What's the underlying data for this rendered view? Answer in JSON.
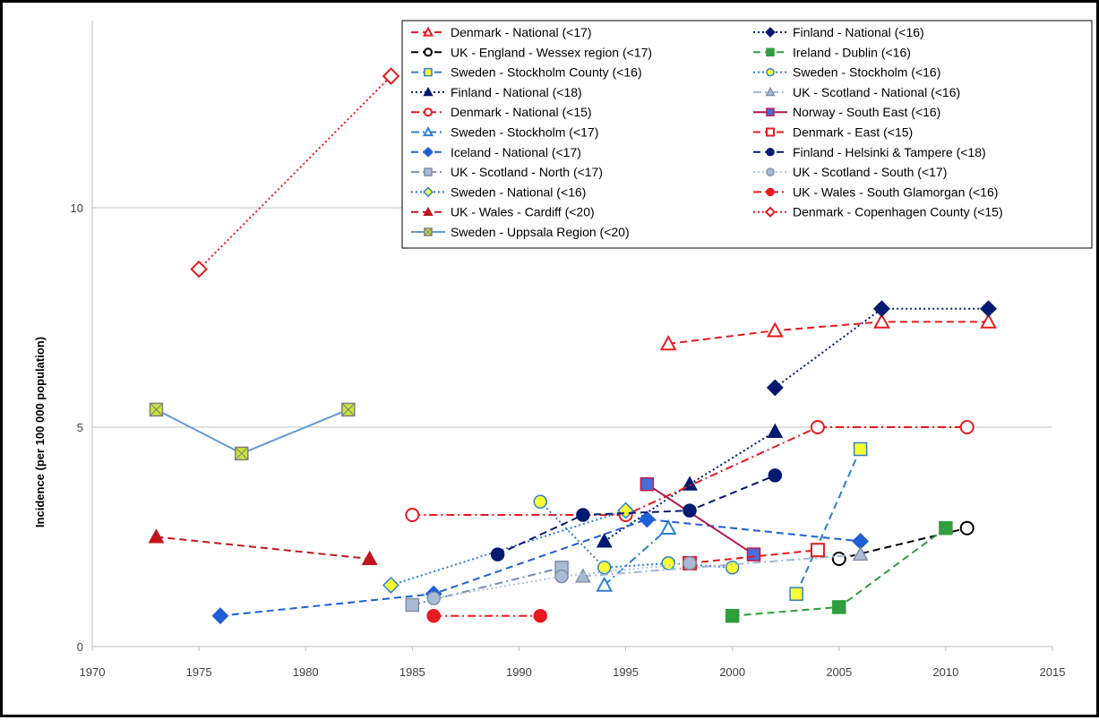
{
  "chart_data": {
    "type": "scatter",
    "title": "",
    "xlabel": "",
    "ylabel": "Incidence (per 100 000 population)",
    "xlim": [
      1970,
      2015
    ],
    "ylim": [
      0,
      14
    ],
    "x_ticks": [
      "1970",
      "1975",
      "1980",
      "1985",
      "1990",
      "1995",
      "2000",
      "2005",
      "2010",
      "2015"
    ],
    "y_ticks": [
      "0",
      "5",
      "10"
    ],
    "grid": "horizontal at 5 and 10",
    "legend_position": "top-right",
    "series": [
      {
        "name": "Denmark - National  (<17)",
        "color": "#e8191f",
        "dash": "dashed",
        "marker": "triangle-open",
        "points": [
          [
            1997,
            6.9
          ],
          [
            2002,
            7.2
          ],
          [
            2007,
            7.4
          ],
          [
            2012,
            7.4
          ]
        ]
      },
      {
        "name": "UK - England - Wessex region  (<17)",
        "color": "#000000",
        "dash": "dashed",
        "marker": "circle-open",
        "points": [
          [
            2005,
            2.0
          ],
          [
            2011,
            2.7
          ]
        ]
      },
      {
        "name": "Sweden - Stockholm County  (<16)",
        "color": "#2a7fd4",
        "dash": "dashed",
        "marker": "square-yellow",
        "points": [
          [
            2003,
            1.2
          ],
          [
            2006,
            4.5
          ]
        ]
      },
      {
        "name": "Finland - National  (<18)",
        "color": "#001a70",
        "dash": "dotted",
        "marker": "triangle-filled",
        "points": [
          [
            1994,
            2.4
          ],
          [
            1998,
            3.7
          ],
          [
            2002,
            4.9
          ]
        ]
      },
      {
        "name": "Denmark - National  (<15)",
        "color": "#e8191f",
        "dash": "dashdot",
        "marker": "circle-open",
        "points": [
          [
            1985,
            3.0
          ],
          [
            1995,
            3.0
          ],
          [
            2004,
            5.0
          ],
          [
            2011,
            5.0
          ]
        ]
      },
      {
        "name": "Sweden - Stockholm  (<17)",
        "color": "#2a7fd4",
        "dash": "dashdot",
        "marker": "triangle-open",
        "points": [
          [
            1994,
            1.4
          ],
          [
            1997,
            2.7
          ]
        ]
      },
      {
        "name": "Iceland - National  (<17)",
        "color": "#1f5fd6",
        "dash": "dashed",
        "marker": "diamond-filled",
        "points": [
          [
            1976,
            0.7
          ],
          [
            1986,
            1.2
          ],
          [
            1996,
            2.9
          ],
          [
            2006,
            2.4
          ]
        ]
      },
      {
        "name": "UK - Scotland - North  (<17)",
        "color": "#6f8fbf",
        "dash": "dashdot",
        "marker": "square-gray",
        "points": [
          [
            1985,
            0.95
          ],
          [
            1992,
            1.8
          ]
        ]
      },
      {
        "name": "Sweden - National  (<16)",
        "color": "#2a7fd4",
        "dash": "dotted",
        "marker": "diamond-yellow",
        "points": [
          [
            1984,
            1.4
          ],
          [
            1995,
            3.1
          ]
        ]
      },
      {
        "name": "UK - Wales - Cardiff  (<20)",
        "color": "#c0161c",
        "dash": "dashed",
        "marker": "triangle-filled",
        "points": [
          [
            1973,
            2.5
          ],
          [
            1983,
            2.0
          ]
        ]
      },
      {
        "name": "Sweden - Uppsala Region  (<20)",
        "color": "#5b9bd5",
        "dash": "solid",
        "marker": "square-cross",
        "points": [
          [
            1973,
            5.4
          ],
          [
            1977,
            4.4
          ],
          [
            1982,
            5.4
          ]
        ]
      },
      {
        "name": "Finland - National  (<16)",
        "color": "#001a70",
        "dash": "dotted",
        "marker": "diamond-filled",
        "points": [
          [
            2002,
            5.9
          ],
          [
            2007,
            7.7
          ],
          [
            2012,
            7.7
          ]
        ]
      },
      {
        "name": "Ireland - Dublin  (<16)",
        "color": "#2e9e3e",
        "dash": "dashed",
        "marker": "square-filled",
        "points": [
          [
            2000,
            0.7
          ],
          [
            2005,
            0.9
          ],
          [
            2010,
            2.7
          ]
        ]
      },
      {
        "name": "Sweden - Stockholm  (<16)",
        "color": "#2a7fd4",
        "dash": "dotted",
        "marker": "circle-yellow",
        "points": [
          [
            1991,
            3.3
          ],
          [
            1994,
            1.8
          ],
          [
            1997,
            1.9
          ],
          [
            2000,
            1.8
          ]
        ]
      },
      {
        "name": "UK - Scotland - National  (<16)",
        "color": "#9fb5d9",
        "dash": "dashdot",
        "marker": "triangle-gray",
        "points": [
          [
            1993,
            1.6
          ],
          [
            2006,
            2.1
          ]
        ]
      },
      {
        "name": "Norway - South East  (<16)",
        "color": "#b3164a",
        "dash": "solid",
        "marker": "square-purple",
        "points": [
          [
            1996,
            3.7
          ],
          [
            2001,
            2.1
          ]
        ]
      },
      {
        "name": "Denmark - East  (<15)",
        "color": "#e8191f",
        "dash": "dashed",
        "marker": "square-open",
        "points": [
          [
            1998,
            1.9
          ],
          [
            2004,
            2.2
          ]
        ]
      },
      {
        "name": "Finland - Helsinki & Tampere  (<18)",
        "color": "#001a70",
        "dash": "dashed",
        "marker": "circle-filled",
        "points": [
          [
            1989,
            2.1
          ],
          [
            1993,
            3.0
          ],
          [
            1998,
            3.1
          ],
          [
            2002,
            3.9
          ]
        ]
      },
      {
        "name": "UK - Scotland - South  (<17)",
        "color": "#b0c4e0",
        "dash": "dotted",
        "marker": "circle-gray",
        "points": [
          [
            1986,
            1.1
          ],
          [
            1992,
            1.6
          ],
          [
            1998,
            1.9
          ]
        ]
      },
      {
        "name": "UK - Wales - South Glamorgan  (<16)",
        "color": "#e8191f",
        "dash": "dashdot",
        "marker": "circle-red",
        "points": [
          [
            1986,
            0.7
          ],
          [
            1991,
            0.7
          ]
        ]
      },
      {
        "name": "Denmark - Copenhagen County  (<15)",
        "color": "#e8191f",
        "dash": "dotted",
        "marker": "diamond-open",
        "points": [
          [
            1975,
            8.6
          ],
          [
            1984,
            13.0
          ]
        ]
      }
    ]
  }
}
